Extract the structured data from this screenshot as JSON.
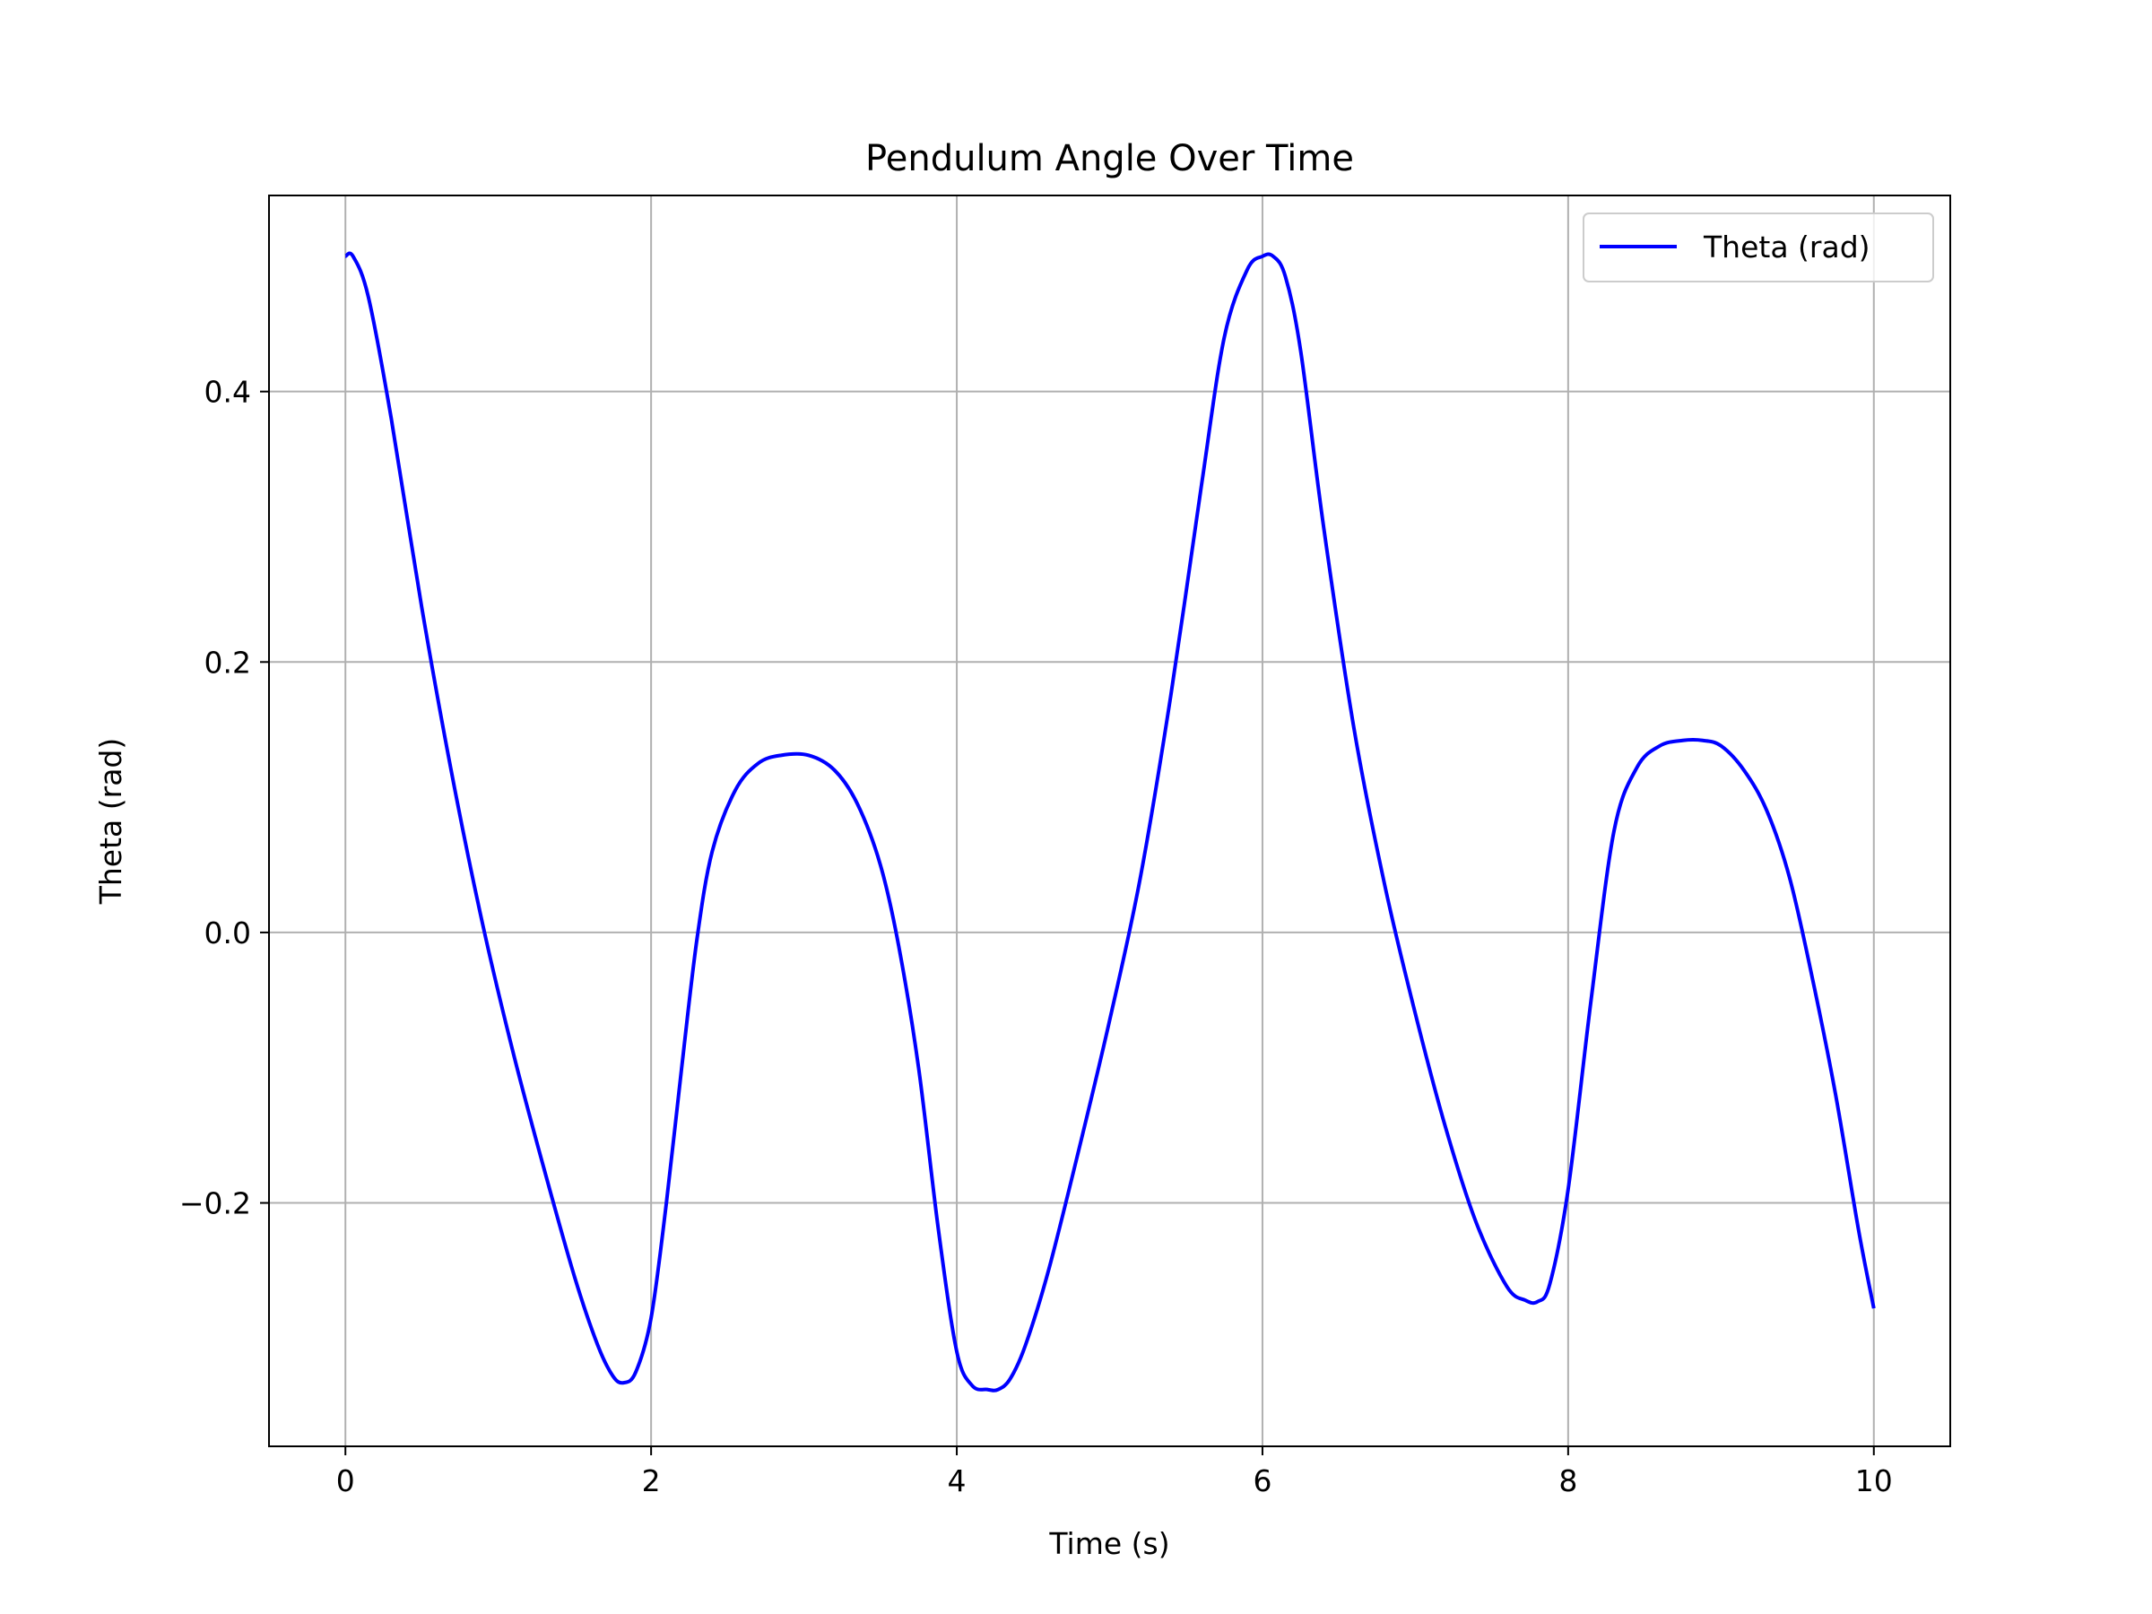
{
  "chart_data": {
    "type": "line",
    "title": "Pendulum Angle Over Time",
    "xlabel": "Time (s)",
    "ylabel": "Theta (rad)",
    "xlim": [
      -0.5,
      10.5
    ],
    "ylim": [
      -0.38,
      0.545
    ],
    "x_ticks": [
      0,
      2,
      4,
      6,
      8,
      10
    ],
    "x_tick_labels": [
      "0",
      "2",
      "4",
      "6",
      "8",
      "10"
    ],
    "y_ticks": [
      -0.2,
      0.0,
      0.2,
      0.4
    ],
    "y_tick_labels": [
      "−0.2",
      "0.0",
      "0.2",
      "0.4"
    ],
    "grid": true,
    "legend_position": "top-right",
    "colors": {
      "line": "#0000ff",
      "grid": "#b0b0b0",
      "axes": "#000000",
      "legend_border": "#cccccc"
    },
    "series": [
      {
        "name": "Theta (rad)",
        "x": [
          0.0,
          0.05,
          0.15,
          0.3,
          0.5,
          0.7,
          0.9,
          1.1,
          1.3,
          1.5,
          1.65,
          1.75,
          1.82,
          1.9,
          2.0,
          2.1,
          2.2,
          2.3,
          2.4,
          2.55,
          2.7,
          2.85,
          3.03,
          3.2,
          3.35,
          3.5,
          3.62,
          3.75,
          3.88,
          4.0,
          4.1,
          4.2,
          4.27,
          4.35,
          4.45,
          4.6,
          4.8,
          5.0,
          5.2,
          5.4,
          5.6,
          5.75,
          5.9,
          6.0,
          6.07,
          6.15,
          6.25,
          6.4,
          6.6,
          6.8,
          7.0,
          7.2,
          7.4,
          7.6,
          7.72,
          7.8,
          7.88,
          8.0,
          8.15,
          8.3,
          8.45,
          8.6,
          8.75,
          8.88,
          9.0,
          9.15,
          9.3,
          9.45,
          9.6,
          9.75,
          9.9,
          10.0
        ],
        "values": [
          0.5,
          0.5,
          0.47,
          0.38,
          0.24,
          0.115,
          0.005,
          -0.09,
          -0.175,
          -0.255,
          -0.305,
          -0.328,
          -0.333,
          -0.325,
          -0.285,
          -0.2,
          -0.1,
          -0.005,
          0.06,
          0.105,
          0.125,
          0.131,
          0.131,
          0.12,
          0.095,
          0.05,
          -0.01,
          -0.1,
          -0.22,
          -0.31,
          -0.335,
          -0.338,
          -0.338,
          -0.33,
          -0.305,
          -0.25,
          -0.16,
          -0.065,
          0.04,
          0.175,
          0.33,
          0.44,
          0.49,
          0.5,
          0.5,
          0.485,
          0.43,
          0.3,
          0.15,
          0.035,
          -0.06,
          -0.145,
          -0.215,
          -0.262,
          -0.272,
          -0.273,
          -0.26,
          -0.19,
          -0.05,
          0.075,
          0.122,
          0.138,
          0.142,
          0.142,
          0.138,
          0.12,
          0.09,
          0.04,
          -0.035,
          -0.12,
          -0.22,
          -0.278
        ]
      }
    ]
  }
}
